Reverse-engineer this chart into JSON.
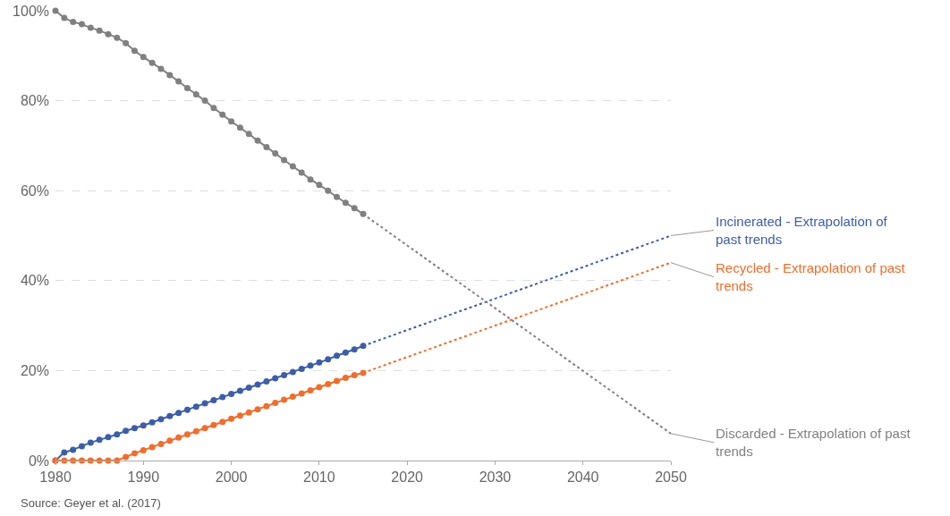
{
  "chart_data": {
    "type": "line",
    "xlim": [
      1980,
      2050
    ],
    "xticks": [
      1980,
      1990,
      2000,
      2010,
      2020,
      2030,
      2040,
      2050
    ],
    "ylim": [
      0,
      100
    ],
    "yticks": [
      {
        "value": 0,
        "label": "0%"
      },
      {
        "value": 20,
        "label": "20%"
      },
      {
        "value": 40,
        "label": "40%"
      },
      {
        "value": 60,
        "label": "60%"
      },
      {
        "value": 80,
        "label": "80%"
      },
      {
        "value": 100,
        "label": "100%"
      }
    ],
    "grid": "y",
    "legend": false,
    "annotations": [
      "Source: Geyer et al. (2017)"
    ],
    "series": [
      {
        "color": "#808080",
        "marker": "circle",
        "line_style": "solid",
        "x": [
          1980,
          1981,
          1982,
          1983,
          1984,
          1985,
          1986,
          1987,
          1988,
          1989,
          1990,
          1991,
          1992,
          1993,
          1994,
          1995,
          1996,
          1997,
          1998,
          1999,
          2000,
          2001,
          2002,
          2003,
          2004,
          2005,
          2006,
          2007,
          2008,
          2009,
          2010,
          2011,
          2012,
          2013,
          2014,
          2015
        ],
        "values": [
          100,
          98.4,
          97.5,
          97,
          96.2,
          95.6,
          94.8,
          94,
          92.8,
          91.1,
          89.7,
          88.4,
          87.1,
          85.7,
          84.3,
          82.8,
          81.4,
          80,
          78.4,
          76.9,
          75.4,
          74,
          72.6,
          71.1,
          69.7,
          68.3,
          66.8,
          65.4,
          64,
          62.5,
          61.3,
          60,
          58.6,
          57.3,
          56.1,
          54.8
        ]
      },
      {
        "color": "#3c5ea8",
        "marker": "circle",
        "line_style": "solid",
        "x": [
          1980,
          1981,
          1982,
          1983,
          1984,
          1985,
          1986,
          1987,
          1988,
          1989,
          1990,
          1991,
          1992,
          1993,
          1994,
          1995,
          1996,
          1997,
          1998,
          1999,
          2000,
          2001,
          2002,
          2003,
          2004,
          2005,
          2006,
          2007,
          2008,
          2009,
          2010,
          2011,
          2012,
          2013,
          2014,
          2015
        ],
        "values": [
          0,
          1.8,
          2.4,
          3.2,
          4,
          4.6,
          5.2,
          5.8,
          6.6,
          7.2,
          7.8,
          8.5,
          9.2,
          9.9,
          10.6,
          11.3,
          12,
          12.7,
          13.4,
          14.1,
          14.8,
          15.5,
          16.2,
          16.9,
          17.6,
          18.3,
          19,
          19.7,
          20.4,
          21.1,
          21.8,
          22.5,
          23.3,
          24,
          24.7,
          25.5
        ]
      },
      {
        "color": "#f06d2c",
        "marker": "circle",
        "line_style": "solid",
        "x": [
          1980,
          1981,
          1982,
          1983,
          1984,
          1985,
          1986,
          1987,
          1988,
          1989,
          1990,
          1991,
          1992,
          1993,
          1994,
          1995,
          1996,
          1997,
          1998,
          1999,
          2000,
          2001,
          2002,
          2003,
          2004,
          2005,
          2006,
          2007,
          2008,
          2009,
          2010,
          2011,
          2012,
          2013,
          2014,
          2015
        ],
        "values": [
          0,
          0,
          0,
          0,
          0,
          0,
          0,
          0,
          0.8,
          1.6,
          2.3,
          3,
          3.7,
          4.4,
          5.1,
          5.8,
          6.5,
          7.2,
          7.9,
          8.6,
          9.3,
          10,
          10.7,
          11.4,
          12.1,
          12.8,
          13.5,
          14.2,
          14.9,
          15.6,
          16.3,
          17,
          17.7,
          18.4,
          19,
          19.5
        ]
      },
      {
        "name": "Incinerated - Extrapolation of past trends",
        "color": "#3c5ea8",
        "marker": "none",
        "line_style": "dotted",
        "x": [
          2015,
          2050
        ],
        "values": [
          25.5,
          50
        ]
      },
      {
        "name": "Recycled - Extrapolation of past trends",
        "color": "#f06d2c",
        "marker": "none",
        "line_style": "dotted",
        "x": [
          2015,
          2050
        ],
        "values": [
          19.5,
          44
        ]
      },
      {
        "name": "Discarded - Extrapolation of past trends",
        "color": "#808080",
        "marker": "none",
        "line_style": "dotted",
        "x": [
          2015,
          2050
        ],
        "values": [
          54.8,
          6
        ]
      }
    ]
  }
}
